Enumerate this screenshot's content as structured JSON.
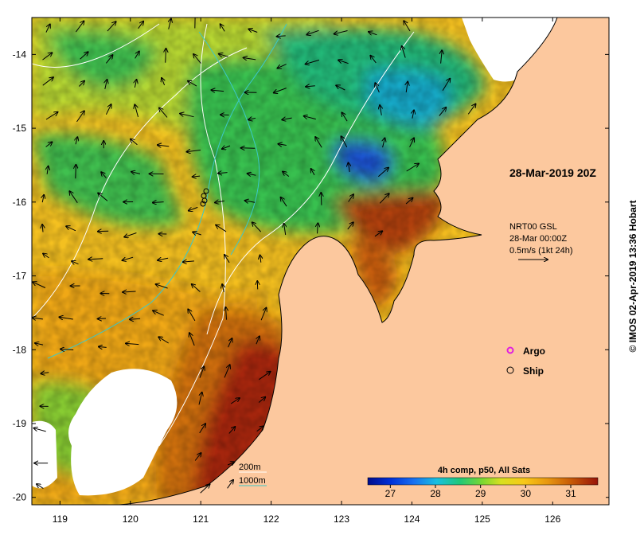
{
  "map": {
    "date_label": "28-Mar-2019 20Z",
    "current_block": {
      "title": "NRT00 GSL",
      "date": "28-Mar 00:00Z",
      "scale": "0.5m/s (1kt 24h)"
    },
    "legend": {
      "argo_label": "Argo",
      "ship_label": "Ship",
      "argo_color": "#e020e0",
      "ship_color": "#000000"
    },
    "bathymetry": {
      "label_200m": "200m",
      "label_1000m": "1000m",
      "color_200m": "#ffffff",
      "color_1000m": "#3cc8c8"
    },
    "colorbar": {
      "title": "4h comp, p50, All Sats",
      "ticks": [
        "27",
        "28",
        "29",
        "30",
        "31"
      ],
      "range": [
        26.5,
        31.6
      ]
    },
    "credit": "© IMOS 02-Apr-2019 13:36 Hobart",
    "land_color": "#fcc89e",
    "x_ticks": [
      "119",
      "120",
      "121",
      "122",
      "123",
      "124",
      "125",
      "126"
    ],
    "y_ticks": [
      "-14",
      "-15",
      "-16",
      "-17",
      "-18",
      "-19",
      "-20"
    ],
    "lon_range": [
      118.6,
      126.8
    ],
    "lat_range": [
      -20.1,
      -13.5
    ]
  }
}
